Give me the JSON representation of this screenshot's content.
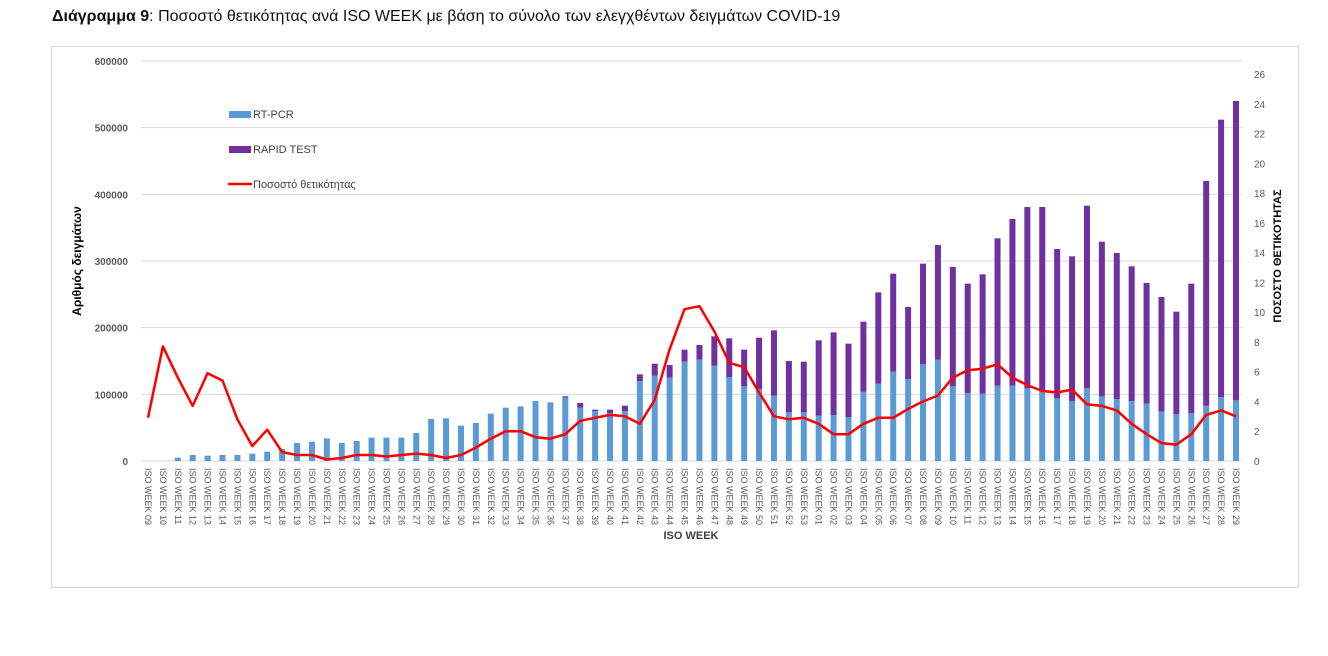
{
  "figure": {
    "title_bold": "Διάγραμμα 9",
    "title_rest": ": Ποσοστό θετικότητας ανά ISO WEEK με βάση το σύνολο των ελεγχθέντων δειγμάτων COVID-19"
  },
  "chart_data": {
    "type": "bar",
    "subtype": "stacked-bar-with-line-secondary-axis",
    "title": "Διάγραμμα 9: Ποσοστό θετικότητας ανά ISO WEEK με βάση το σύνολο των ελεγχθέντων δειγμάτων COVID-19",
    "xlabel": "ISO WEEK",
    "ylabel": "Αριθμός δειγμάτων",
    "y2label": "ΠΟΣΟΣΤΟ ΘΕΤΙΚΟΤΗΤΑΣ",
    "ylim": [
      0,
      600000
    ],
    "yticks": [
      "0",
      "100000",
      "200000",
      "300000",
      "400000",
      "500000",
      "600000"
    ],
    "y2lim": [
      0,
      26
    ],
    "y2ticks": [
      "0",
      "2",
      "4",
      "6",
      "8",
      "10",
      "12",
      "14",
      "16",
      "18",
      "20",
      "22",
      "24",
      "26"
    ],
    "grid": true,
    "legend_position": "top-left",
    "colors": {
      "rt_pcr": "#5b9bd5",
      "rapid": "#7030a0",
      "positivity": "#ff0000",
      "grid": "#d9d9d9"
    },
    "categories": [
      "ISO WEEK 09",
      "ISO WEEK 10",
      "ISO WEEK 11",
      "ISO WEEK 12",
      "ISO WEEK 13",
      "ISO WEEK 14",
      "ISO WEEK 15",
      "ISO WEEK 16",
      "ISO WEEK 17",
      "ISO WEEK 18",
      "ISO WEEK 19",
      "ISO WEEK 20",
      "ISO WEEK 21",
      "ISO WEEK 22",
      "ISO WEEK 23",
      "ISO WEEK 24",
      "ISO WEEK 25",
      "ISO WEEK 26",
      "ISO WEEK 27",
      "ISO WEEK 28",
      "ISO WEEK 29",
      "ISO WEEK 30",
      "ISO WEEK 31",
      "ISO WEEK 32",
      "ISO WEEK 33",
      "ISO WEEK 34",
      "ISO WEEK 35",
      "ISO WEEK 36",
      "ISO WEEK 37",
      "ISO WEEK 38",
      "ISO WEEK 39",
      "ISO WEEK 40",
      "ISO WEEK 41",
      "ISO WEEK 42",
      "ISO WEEK 43",
      "ISO WEEK 44",
      "ISO WEEK 45",
      "ISO WEEK 46",
      "ISO WEEK 47",
      "ISO WEEK 48",
      "ISO WEEK 49",
      "ISO WEEK 50",
      "ISO WEEK 51",
      "ISO WEEK 52",
      "ISO WEEK 53",
      "ISO WEEK 01",
      "ISO WEEK 02",
      "ISO WEEK 03",
      "ISO WEEK 04",
      "ISO WEEK 05",
      "ISO WEEK 06",
      "ISO WEEK 07",
      "ISO WEEK 08",
      "ISO WEEK 09",
      "ISO WEEK 10",
      "ISO WEEK 11",
      "ISO WEEK 12",
      "ISO WEEK 13",
      "ISO WEEK 14",
      "ISO WEEK 15",
      "ISO WEEK 16",
      "ISO WEEK 17",
      "ISO WEEK 18",
      "ISO WEEK 19",
      "ISO WEEK 20",
      "ISO WEEK 21",
      "ISO WEEK 22",
      "ISO WEEK 23",
      "ISO WEEK 24",
      "ISO WEEK 25",
      "ISO WEEK 26",
      "ISO WEEK 27",
      "ISO WEEK 28",
      "ISO WEEK 29"
    ],
    "series": [
      {
        "name": "RT-PCR",
        "axis": "left",
        "kind": "bar",
        "values": [
          0,
          0,
          5000,
          9000,
          8000,
          9000,
          9000,
          11000,
          14000,
          18000,
          27000,
          29000,
          34000,
          27000,
          30000,
          35000,
          35000,
          35000,
          42000,
          63000,
          64000,
          53000,
          57000,
          71000,
          80000,
          82000,
          90000,
          88000,
          95000,
          80000,
          75000,
          72000,
          75000,
          120000,
          128000,
          125000,
          149000,
          152000,
          143000,
          126000,
          112000,
          108000,
          98000,
          73000,
          73000,
          68000,
          69000,
          66000,
          104000,
          116000,
          134000,
          123000,
          145000,
          152000,
          112000,
          102000,
          101000,
          113000,
          113000,
          109000,
          106000,
          94000,
          90000,
          109000,
          97000,
          93000,
          90000,
          86000,
          74000,
          70000,
          72000,
          83000,
          96000,
          91000
        ]
      },
      {
        "name": "RAPID TEST",
        "axis": "left",
        "kind": "bar",
        "values": [
          0,
          0,
          0,
          0,
          0,
          0,
          0,
          0,
          0,
          0,
          0,
          0,
          0,
          0,
          0,
          0,
          0,
          0,
          0,
          0,
          0,
          0,
          0,
          0,
          0,
          0,
          0,
          0,
          2000,
          7000,
          2000,
          5000,
          8000,
          10000,
          18000,
          19000,
          18000,
          22000,
          44000,
          58000,
          55000,
          77000,
          98000,
          77000,
          76000,
          113000,
          124000,
          110000,
          105000,
          137000,
          147000,
          108000,
          151000,
          172000,
          179000,
          164000,
          179000,
          221000,
          250000,
          272000,
          275000,
          224000,
          217000,
          274000,
          232000,
          219000,
          202000,
          181000,
          172000,
          154000,
          194000,
          337000,
          416000,
          449000
        ]
      },
      {
        "name": "Ποσοστό θετικότητας",
        "axis": "right",
        "kind": "line",
        "values": [
          2.9,
          7.7,
          5.6,
          3.7,
          5.9,
          5.4,
          2.8,
          1.0,
          2.1,
          0.6,
          0.4,
          0.4,
          0.1,
          0.2,
          0.4,
          0.4,
          0.3,
          0.4,
          0.5,
          0.4,
          0.2,
          0.4,
          0.9,
          1.5,
          2.0,
          2.0,
          1.6,
          1.5,
          1.8,
          2.7,
          2.9,
          3.1,
          3.0,
          2.5,
          4.1,
          7.5,
          10.2,
          10.4,
          8.7,
          6.6,
          6.3,
          4.6,
          3.0,
          2.8,
          2.9,
          2.5,
          1.8,
          1.8,
          2.5,
          2.9,
          2.9,
          3.5,
          4.0,
          4.4,
          5.6,
          6.1,
          6.2,
          6.5,
          5.6,
          5.1,
          4.7,
          4.6,
          4.8,
          3.8,
          3.7,
          3.4,
          2.5,
          1.8,
          1.2,
          1.1,
          1.8,
          3.1,
          3.4,
          3.0
        ]
      }
    ]
  }
}
